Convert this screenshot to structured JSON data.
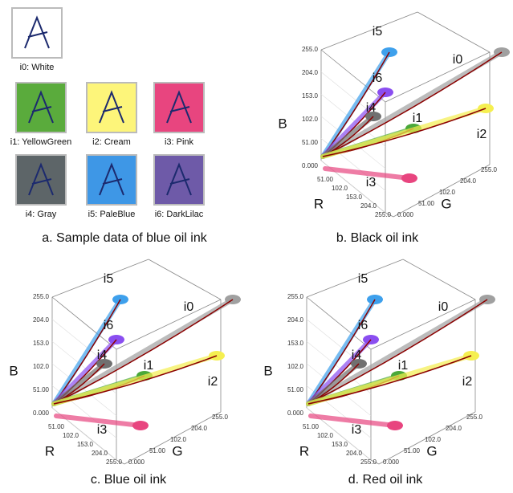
{
  "panel_a": {
    "caption": "a. Sample data of blue oil ink",
    "swatches": [
      {
        "label": "i0: White",
        "color": "#ffffff"
      },
      {
        "label": "i1: YellowGreen",
        "color": "#5aab3c"
      },
      {
        "label": "i2: Cream",
        "color": "#fdf57a"
      },
      {
        "label": "i3: Pink",
        "color": "#e8457f"
      },
      {
        "label": "i4: Gray",
        "color": "#5d6568"
      },
      {
        "label": "i5: PaleBlue",
        "color": "#3e97e6"
      },
      {
        "label": "i6: DarkLilac",
        "color": "#6e5aa8"
      }
    ]
  },
  "plots": [
    {
      "caption": "b. Black oil ink",
      "axis_labels": {
        "b": "B",
        "r": "R",
        "g": "G"
      },
      "b_ticks": [
        "0.000",
        "51.00",
        "102.0",
        "153.0",
        "204.0",
        "255.0"
      ],
      "r_ticks": [
        "51.00",
        "102.0",
        "153.0",
        "204.0",
        "255.0"
      ],
      "g_ticks": [
        "0.000",
        "51.00",
        "102.0",
        "204.0",
        "255.0"
      ],
      "cluster_labels": [
        "i5",
        "i0",
        "i6",
        "i4",
        "i1",
        "i2",
        "i3"
      ]
    },
    {
      "caption": "c. Blue oil ink",
      "axis_labels": {
        "b": "B",
        "r": "R",
        "g": "G"
      },
      "b_ticks": [
        "0.000",
        "51.00",
        "102.0",
        "153.0",
        "204.0",
        "255.0"
      ],
      "r_ticks": [
        "51.00",
        "102.0",
        "153.0",
        "204.0",
        "255.0"
      ],
      "g_ticks": [
        "0.000",
        "51.00",
        "102.0",
        "204.0",
        "255.0"
      ],
      "cluster_labels": [
        "i5",
        "i0",
        "i6",
        "i4",
        "i1",
        "i2",
        "i3"
      ]
    },
    {
      "caption": "d. Red oil ink",
      "axis_labels": {
        "b": "B",
        "r": "R",
        "g": "G"
      },
      "b_ticks": [
        "0.000",
        "51.00",
        "102.0",
        "153.0",
        "204.0",
        "255.0"
      ],
      "r_ticks": [
        "51.00",
        "102.0",
        "153.0",
        "204.0",
        "255.0"
      ],
      "g_ticks": [
        "0.000",
        "51.00",
        "102.0",
        "204.0",
        "255.0"
      ],
      "cluster_labels": [
        "i5",
        "i0",
        "i6",
        "i4",
        "i1",
        "i2",
        "i3"
      ]
    }
  ]
}
